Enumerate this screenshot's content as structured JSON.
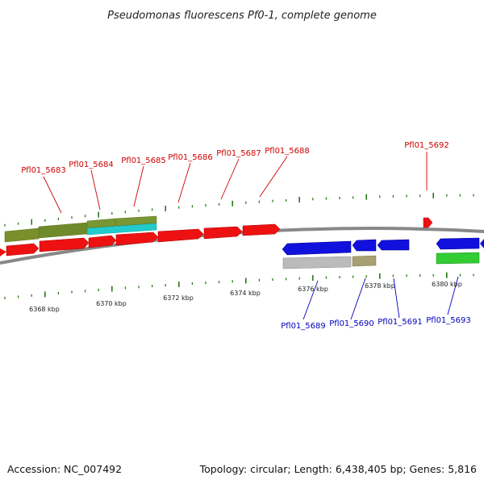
{
  "title": "Pseudomonas fluorescens Pf0-1, complete genome",
  "footer": {
    "accession": "Accession: NC_007492",
    "summary": "Topology: circular; Length: 6,438,405 bp; Genes: 5,816"
  },
  "colors": {
    "forward_label": "#cc0000",
    "reverse_label": "#0000bb",
    "forward_gene": "#ee1111",
    "reverse_gene": "#1111dd",
    "tick": "#2a7a1a",
    "backbone": "#888888",
    "olive": "#6f8a2a",
    "cyan": "#22cccc",
    "grey": "#bbbbbb",
    "khaki": "#a8a070",
    "green": "#33cc33"
  },
  "kbp_labels": [
    "6368 kbp",
    "6370 kbp",
    "6372 kbp",
    "6374 kbp",
    "6376 kbp",
    "6378 kbp",
    "6380 kbp"
  ],
  "forward_genes": [
    {
      "name": "Pfl01_5683"
    },
    {
      "name": "Pfl01_5684"
    },
    {
      "name": "Pfl01_5685"
    },
    {
      "name": "Pfl01_5686"
    },
    {
      "name": "Pfl01_5687"
    },
    {
      "name": "Pfl01_5688"
    },
    {
      "name": "Pfl01_5692"
    }
  ],
  "reverse_genes": [
    {
      "name": "Pfl01_5689"
    },
    {
      "name": "Pfl01_5690"
    },
    {
      "name": "Pfl01_5691"
    },
    {
      "name": "Pfl01_5693"
    }
  ]
}
